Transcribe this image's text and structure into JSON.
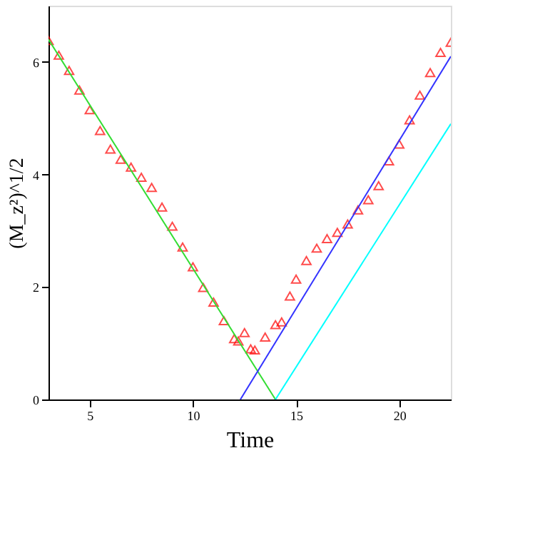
{
  "chart_data": {
    "type": "scatter",
    "xlabel": "Time",
    "ylabel": "(M_z²)^1/2",
    "xlim": [
      3,
      22.5
    ],
    "ylim": [
      0,
      7
    ],
    "xticks": [
      5,
      10,
      15,
      20
    ],
    "yticks": [
      0,
      2,
      4,
      6
    ],
    "grid": false,
    "series": [
      {
        "marker": "triangle",
        "color": "#ff0000",
        "x": [
          3,
          3.5,
          4,
          4.5,
          5,
          5.5,
          6,
          6.5,
          7,
          7.5,
          8,
          8.5,
          9,
          9.5,
          10,
          10.5,
          11,
          11.5,
          12,
          12.2,
          12.5,
          12.8,
          13,
          13.5,
          14,
          14.3,
          14.7,
          15,
          15.5,
          16,
          16.5,
          17,
          17.5,
          18,
          18.5,
          19,
          19.5,
          20,
          20.5,
          21,
          21.5,
          22,
          22.5
        ],
        "values": [
          6.38,
          6.12,
          5.85,
          5.5,
          5.15,
          4.78,
          4.45,
          4.27,
          4.13,
          3.95,
          3.77,
          3.42,
          3.08,
          2.71,
          2.36,
          1.99,
          1.73,
          1.4,
          1.08,
          1.04,
          1.19,
          0.9,
          0.88,
          1.11,
          1.33,
          1.38,
          1.84,
          2.14,
          2.47,
          2.69,
          2.86,
          2.97,
          3.12,
          3.37,
          3.55,
          3.8,
          4.24,
          4.54,
          4.97,
          5.41,
          5.81,
          6.17,
          6.35
        ]
      },
      {
        "type": "line",
        "marker": "none",
        "color": "#33dd33",
        "x": [
          3,
          14
        ],
        "values": [
          6.4,
          0
        ]
      },
      {
        "type": "line",
        "marker": "none",
        "color": "#3333ff",
        "x": [
          12.3,
          22.5
        ],
        "values": [
          0,
          6.1
        ]
      },
      {
        "type": "line",
        "marker": "none",
        "color": "#00ffff",
        "x": [
          14,
          22.5
        ],
        "values": [
          0,
          4.9
        ]
      }
    ]
  }
}
